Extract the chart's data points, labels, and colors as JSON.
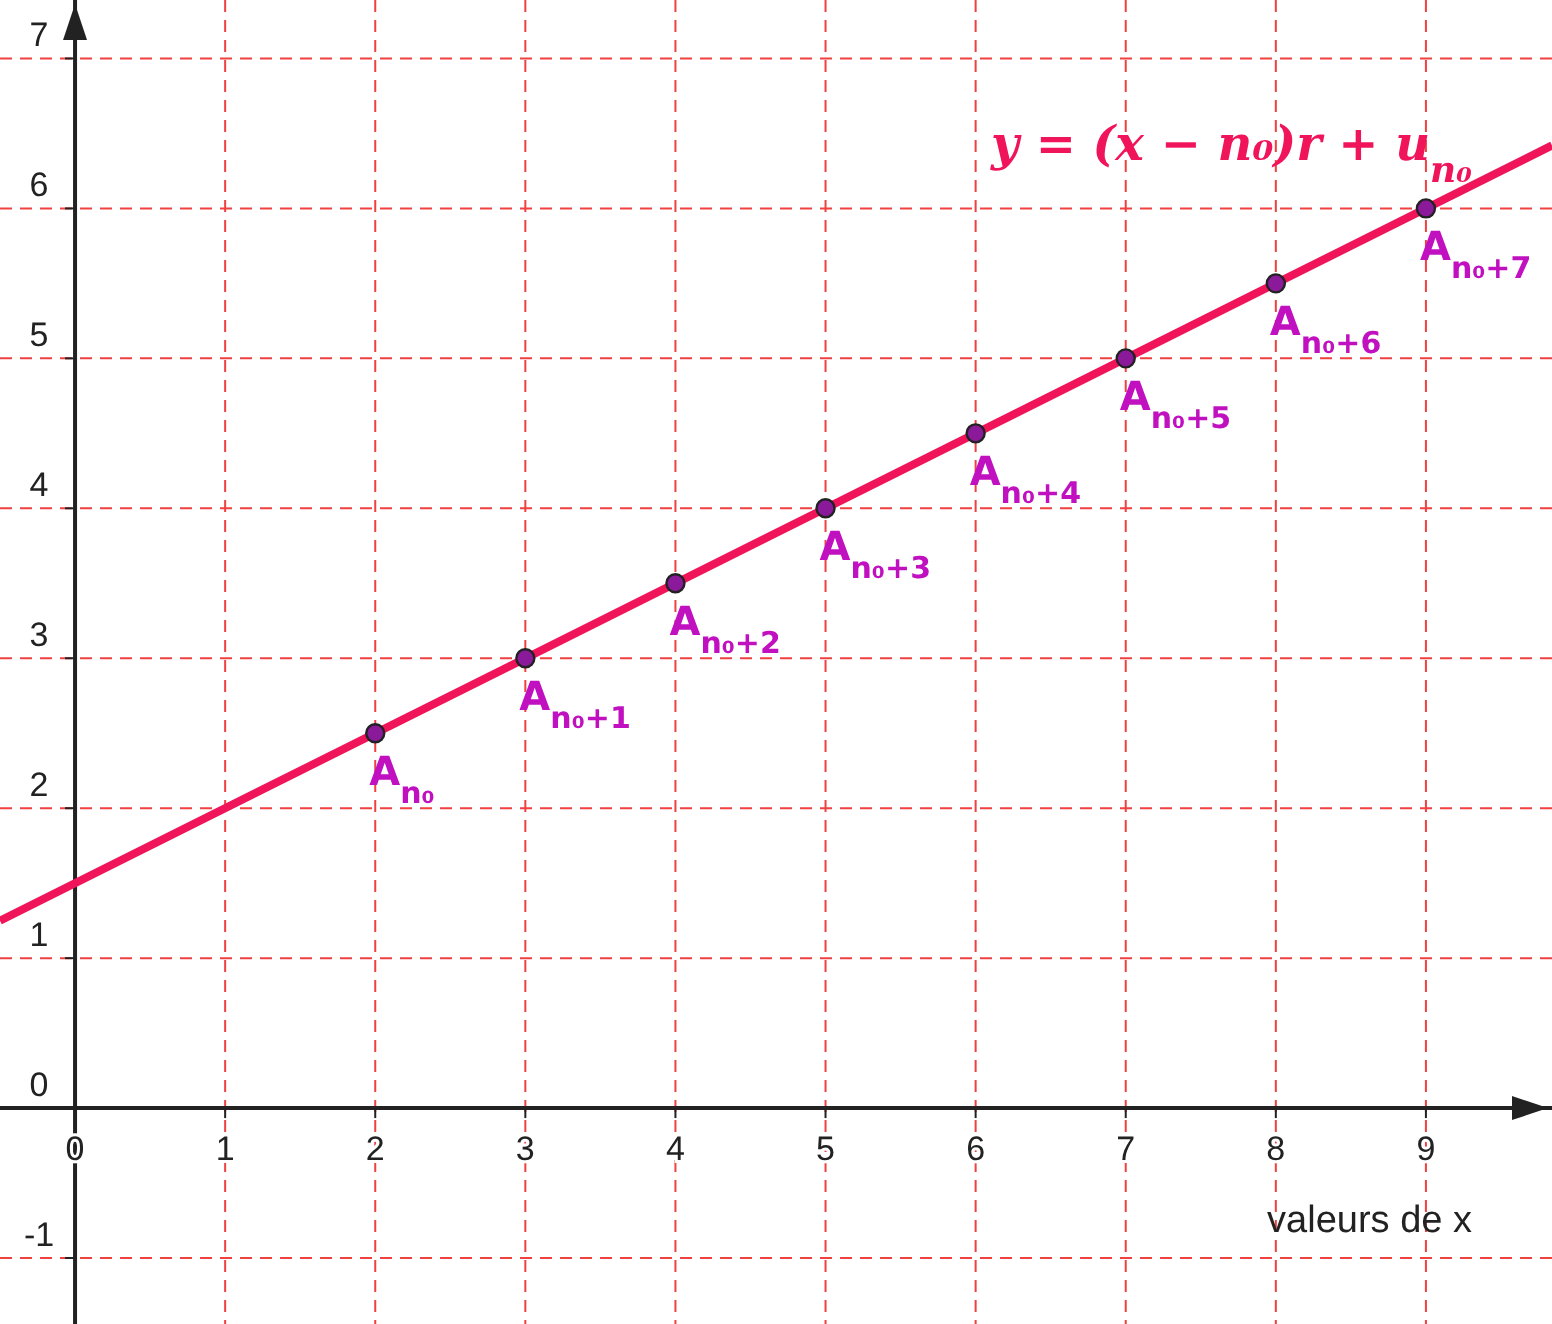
{
  "chart_data": {
    "type": "line",
    "title": "y = (x − n₀)r + u$_{n₀}$",
    "xlabel": "valeurs de x",
    "xlim": [
      -0.5,
      9.84
    ],
    "ylim": [
      -1.44,
      7.39
    ],
    "xticks": [
      0,
      1,
      2,
      3,
      4,
      5,
      6,
      7,
      8,
      9
    ],
    "yticks": [
      -1,
      0,
      1,
      2,
      3,
      4,
      5,
      6,
      7
    ],
    "grid": true,
    "series": [
      {
        "color": "#f0145a",
        "line_style": "solid",
        "x": [
          -0.5,
          9.84
        ],
        "values": [
          1.25,
          6.42
        ]
      },
      {
        "type": "scatter",
        "color": "#8b1a9b",
        "marker": "circle",
        "x": [
          2,
          3,
          4,
          5,
          6,
          7,
          8,
          9
        ],
        "values": [
          2.5,
          3,
          3.5,
          4,
          4.5,
          5,
          5.5,
          6
        ]
      }
    ],
    "annotations": [
      {
        "text": "A$_{n₀}$",
        "x": 2,
        "y": 2.5
      },
      {
        "text": "A$_{n₀+1}$",
        "x": 3,
        "y": 3
      },
      {
        "text": "A$_{n₀+2}$",
        "x": 4,
        "y": 3.5
      },
      {
        "text": "A$_{n₀+3}$",
        "x": 5,
        "y": 4
      },
      {
        "text": "A$_{n₀+4}$",
        "x": 6,
        "y": 4.5
      },
      {
        "text": "A$_{n₀+5}$",
        "x": 7,
        "y": 5
      },
      {
        "text": "A$_{n₀+6}$",
        "x": 8,
        "y": 5.5
      },
      {
        "text": "A$_{n₀+7}$",
        "x": 9,
        "y": 6
      }
    ]
  }
}
